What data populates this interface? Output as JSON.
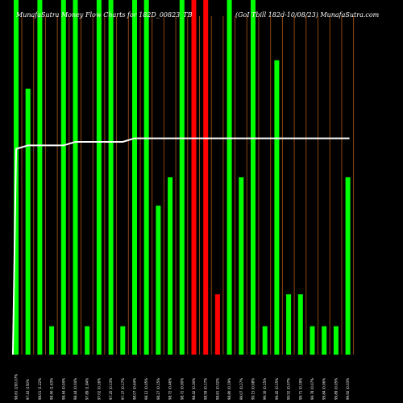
{
  "chart_data": {
    "type": "bar",
    "title_left": "MunafaSutra  Money  Flow  Charts for 182D_00823_TB",
    "title_right": "(GoI  Tbill 182d-10/08/23) MunafaSutra.com",
    "colors": {
      "background": "#000000",
      "up": "#00ff00",
      "down": "#ff0000",
      "line": "#ffffff",
      "gridline": "#8b4513"
    },
    "categories": [
      "98.61 (200.07%",
      "97.43 (150%",
      "98.01 (1.22%",
      "98.40 (1.63%",
      "98.44 (0.04%",
      "98.44 (0.04%",
      "97.89 (1.84%",
      "97.02 (0.16%",
      "97.20 (0.13%",
      "97.37 (0.17%",
      "98.07 (0.64%",
      "98.12 (0.05%",
      "98.27 (0.15%",
      "98.72 (0.46%",
      "98.72 (0.00%",
      "98.42 (0.30%",
      "98.59 (0.17%",
      "98.61 (0.02%",
      "98.80 (0.19%",
      "99.07 (0.27%",
      "99.15 (0.08%",
      "99.30 (0.15%",
      "99.45 (0.15%",
      "99.52 (0.07%",
      "99.71 (0.19%",
      "99.78 (0.07%",
      "99.84 (0.06%",
      "99.89 (0.05%",
      "99.92 (0.03%"
    ],
    "bar_colors": [
      "up",
      "up",
      "up",
      "up",
      "up",
      "up",
      "up",
      "up",
      "up",
      "up",
      "up",
      "up",
      "up",
      "up",
      "up",
      "down",
      "down",
      "down",
      "up",
      "up",
      "up",
      "up",
      "up",
      "up",
      "up",
      "up",
      "up",
      "up",
      "up"
    ],
    "values": [
      100,
      75,
      100,
      8,
      100,
      100,
      8,
      100,
      100,
      8,
      100,
      100,
      42,
      50,
      100,
      100,
      100,
      17,
      100,
      50,
      100,
      8,
      83,
      17,
      17,
      8,
      8,
      8,
      50
    ],
    "line": [
      58,
      59,
      59,
      59,
      59,
      60,
      60,
      60,
      60,
      60,
      61,
      61,
      61,
      61,
      61,
      61,
      61,
      61,
      61,
      61,
      61,
      61,
      61,
      61,
      61,
      61,
      61,
      61,
      61
    ],
    "line_start": 0,
    "ylim": [
      0,
      100
    ]
  }
}
